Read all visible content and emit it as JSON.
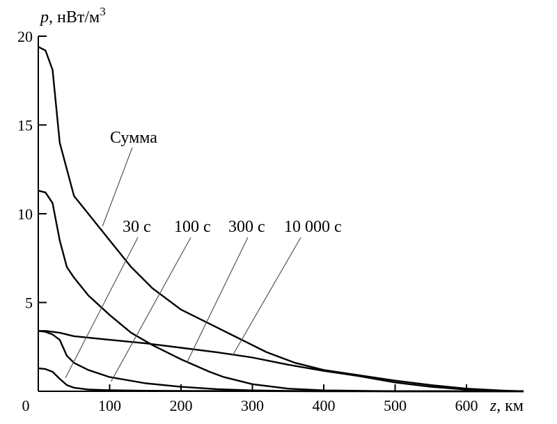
{
  "chart_data": {
    "type": "line",
    "xlabel_var": "z",
    "xlabel_unit": ", км",
    "ylabel_var": "p",
    "ylabel_unit": ", нВт/м",
    "ylabel_sup": "3",
    "xlim": [
      0,
      680
    ],
    "ylim": [
      0,
      20
    ],
    "x_ticks": [
      0,
      100,
      200,
      300,
      400,
      500,
      600
    ],
    "x_tick_labels": [
      "0",
      "100",
      "200",
      "300",
      "400",
      "500",
      "600"
    ],
    "y_ticks": [
      5,
      10,
      15,
      20
    ],
    "y_tick_labels": [
      "5",
      "10",
      "15",
      "20"
    ],
    "grid": false,
    "series": [
      {
        "name": "Сумма",
        "x": [
          0,
          10,
          20,
          30,
          50,
          70,
          100,
          130,
          160,
          200,
          240,
          280,
          320,
          360,
          400,
          450,
          500,
          550,
          600,
          650,
          680
        ],
        "y": [
          19.4,
          19.2,
          18.1,
          14.0,
          11.0,
          10.0,
          8.5,
          7.0,
          5.8,
          4.6,
          3.8,
          3.0,
          2.2,
          1.6,
          1.2,
          0.9,
          0.6,
          0.35,
          0.15,
          0.04,
          0.0
        ]
      },
      {
        "name": "30 с",
        "x": [
          0,
          10,
          20,
          30,
          40,
          50,
          70,
          100,
          150,
          200,
          300,
          400,
          500,
          600,
          680
        ],
        "y": [
          1.3,
          1.25,
          1.1,
          0.7,
          0.35,
          0.2,
          0.1,
          0.06,
          0.03,
          0.02,
          0.01,
          0.0,
          0.0,
          0.0,
          0.0
        ]
      },
      {
        "name": "100 с",
        "x": [
          0,
          10,
          20,
          30,
          40,
          50,
          70,
          100,
          150,
          200,
          250,
          300,
          350,
          400,
          500,
          600,
          680
        ],
        "y": [
          3.4,
          3.35,
          3.2,
          2.9,
          2.0,
          1.6,
          1.2,
          0.8,
          0.45,
          0.25,
          0.12,
          0.05,
          0.02,
          0.01,
          0.0,
          0.0,
          0.0
        ]
      },
      {
        "name": "300 с",
        "x": [
          0,
          10,
          20,
          30,
          40,
          50,
          70,
          100,
          130,
          160,
          200,
          240,
          260,
          300,
          350,
          400,
          500,
          600,
          680
        ],
        "y": [
          11.3,
          11.2,
          10.6,
          8.5,
          7.0,
          6.4,
          5.4,
          4.3,
          3.3,
          2.6,
          1.8,
          1.1,
          0.8,
          0.4,
          0.15,
          0.05,
          0.0,
          0.0,
          0.0
        ]
      },
      {
        "name": "10 000 с",
        "x": [
          0,
          10,
          20,
          30,
          50,
          100,
          150,
          200,
          250,
          300,
          350,
          400,
          450,
          500,
          550,
          600,
          650,
          680
        ],
        "y": [
          3.4,
          3.4,
          3.35,
          3.3,
          3.1,
          2.9,
          2.7,
          2.45,
          2.2,
          1.9,
          1.5,
          1.15,
          0.85,
          0.5,
          0.25,
          0.1,
          0.02,
          0.0
        ]
      }
    ],
    "labels": [
      {
        "text": "Сумма",
        "series": "Сумма",
        "anchor": [
          90,
          9.3
        ]
      },
      {
        "text": "30 с",
        "series": "30 с",
        "anchor": [
          38,
          0.75
        ]
      },
      {
        "text": "100 с",
        "series": "100 с",
        "anchor": [
          102,
          0.55
        ]
      },
      {
        "text": "300 с",
        "series": "300 с",
        "anchor": [
          208,
          1.6
        ]
      },
      {
        "text": "10 000 с",
        "series": "10 000 с",
        "anchor": [
          272,
          2.0
        ]
      }
    ]
  }
}
